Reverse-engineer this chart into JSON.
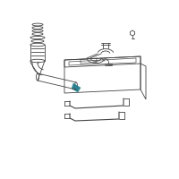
{
  "background_color": "#ffffff",
  "line_color": "#444444",
  "teal_color": "#1a7a8a",
  "fig_size": [
    2.0,
    2.0
  ],
  "dpi": 100
}
